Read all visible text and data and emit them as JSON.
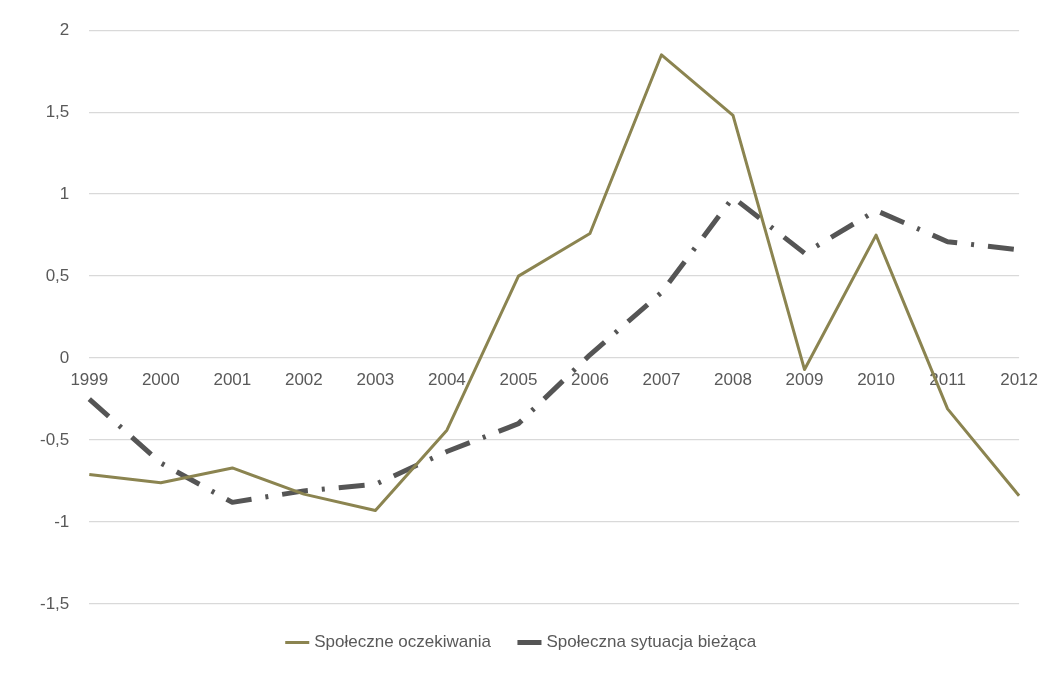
{
  "chart_data": {
    "type": "line",
    "categories": [
      "1999",
      "2000",
      "2001",
      "2002",
      "2003",
      "2004",
      "2005",
      "2006",
      "2007",
      "2008",
      "2009",
      "2010",
      "2011",
      "2012"
    ],
    "series": [
      {
        "name": "Społeczne oczekiwania",
        "color": "#8b8450",
        "line_style": "solid",
        "values": [
          -0.71,
          -0.76,
          -0.67,
          -0.83,
          -0.93,
          -0.44,
          0.5,
          0.76,
          1.85,
          1.48,
          -0.07,
          0.75,
          -0.31,
          -0.84
        ]
      },
      {
        "name": "Społeczna sytuacja bieżąca",
        "color": "#555555",
        "line_style": "dashed",
        "values": [
          -0.25,
          -0.64,
          -0.88,
          -0.81,
          -0.77,
          -0.57,
          -0.4,
          0.02,
          0.4,
          0.98,
          0.64,
          0.9,
          0.71,
          0.66
        ]
      }
    ],
    "ylim": [
      -1.5,
      2
    ],
    "yticks": [
      {
        "value": -1.5,
        "label": "-1,5"
      },
      -1,
      {
        "value": -0.5,
        "label": "-0,5"
      },
      0,
      {
        "value": 0.5,
        "label": "0,5"
      },
      1,
      {
        "value": 1.5,
        "label": "1,5"
      },
      2
    ],
    "grid": "y",
    "legend": "bottom",
    "marker": "none"
  }
}
